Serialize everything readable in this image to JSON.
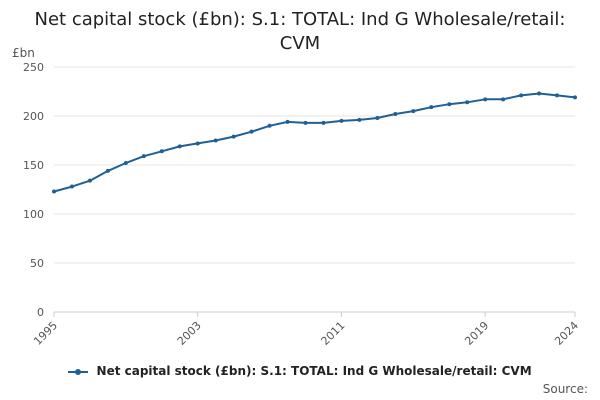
{
  "title_lines": [
    "Net capital stock (£bn): S.1: TOTAL: Ind G Wholesale/retail:",
    "CVM"
  ],
  "source_label": "Source:",
  "colors": {
    "series": "#206095",
    "grid": "#e6e6e6",
    "axis": "#cccccc"
  },
  "chart_data": {
    "type": "line",
    "title": "Net capital stock (£bn): S.1: TOTAL: Ind G Wholesale/retail: CVM",
    "ylabel": "£bn",
    "xlabel": "",
    "ylim": [
      0,
      250
    ],
    "yticks": [
      0,
      50,
      100,
      150,
      200,
      250
    ],
    "xlim": [
      1995,
      2024
    ],
    "xticks": [
      1995,
      2003,
      2011,
      2019,
      2024
    ],
    "grid": true,
    "legend": "bottom",
    "series": [
      {
        "name": "Net capital stock (£bn): S.1: TOTAL: Ind G Wholesale/retail: CVM",
        "x": [
          1995,
          1996,
          1997,
          1998,
          1999,
          2000,
          2001,
          2002,
          2003,
          2004,
          2005,
          2006,
          2007,
          2008,
          2009,
          2010,
          2011,
          2012,
          2013,
          2014,
          2015,
          2016,
          2017,
          2018,
          2019,
          2020,
          2021,
          2022,
          2023,
          2024
        ],
        "values": [
          123,
          128,
          134,
          144,
          152,
          159,
          164,
          169,
          172,
          175,
          179,
          184,
          190,
          194,
          193,
          193,
          195,
          196,
          198,
          202,
          205,
          209,
          212,
          214,
          217,
          217,
          221,
          223,
          221,
          219
        ]
      }
    ]
  }
}
